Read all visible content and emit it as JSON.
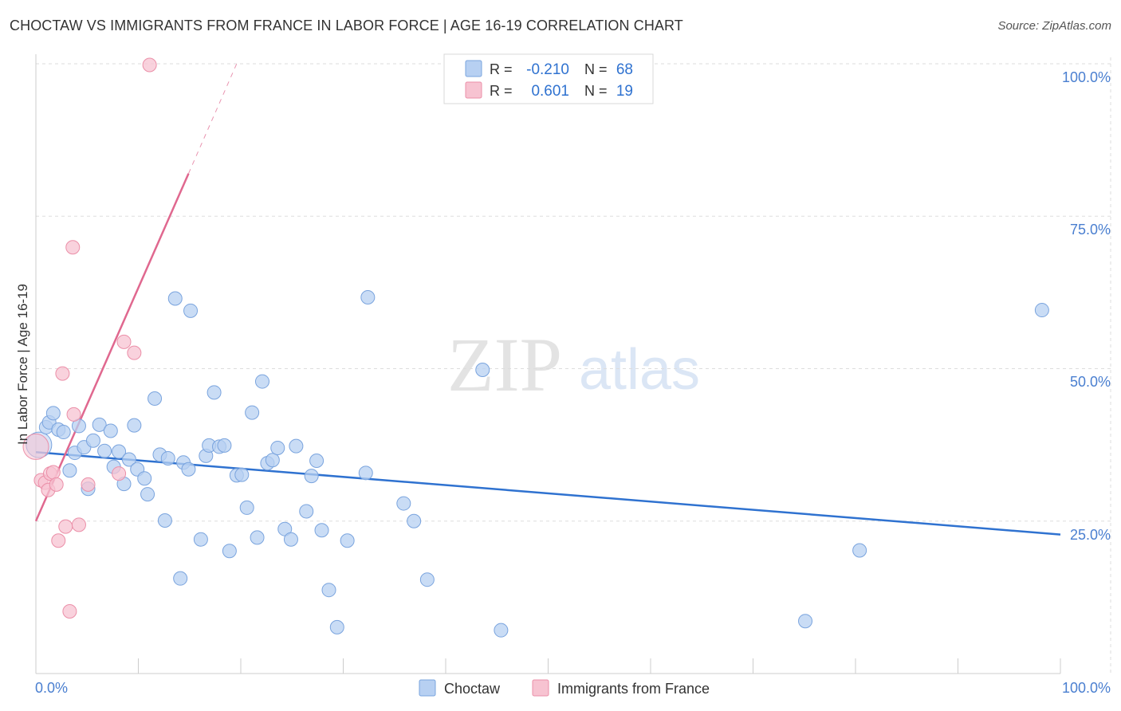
{
  "title": "CHOCTAW VS IMMIGRANTS FROM FRANCE IN LABOR FORCE | AGE 16-19 CORRELATION CHART",
  "source": "Source: ZipAtlas.com",
  "watermark": {
    "zip": "ZIP",
    "atlas": "atlas"
  },
  "colors": {
    "choctaw_fill": "#b7d0f2",
    "choctaw_stroke": "#7aa4de",
    "choctaw_line": "#2f72d0",
    "france_fill": "#f7c3d1",
    "france_stroke": "#eb8fa8",
    "france_line": "#e0688f",
    "axis_label": "#4a7fd0",
    "grid": "#dddddd"
  },
  "legend_top": {
    "rows": [
      {
        "r_label": "R =",
        "r_value": "-0.210",
        "n_label": "N =",
        "n_value": "68"
      },
      {
        "r_label": "R =",
        "r_value": "0.601",
        "n_label": "N =",
        "n_value": "19"
      }
    ]
  },
  "chart_data": {
    "type": "scatter",
    "title": "CHOCTAW VS IMMIGRANTS FROM FRANCE IN LABOR FORCE | AGE 16-19 CORRELATION CHART",
    "xlabel": "",
    "ylabel": "In Labor Force | Age 16-19",
    "xlim": [
      0,
      100
    ],
    "ylim": [
      0,
      100
    ],
    "x_tick_labels": [
      "0.0%",
      "100.0%"
    ],
    "y_ticks": [
      25,
      50,
      75,
      100
    ],
    "y_tick_labels": [
      "25.0%",
      "50.0%",
      "75.0%",
      "100.0%"
    ],
    "grid": true,
    "legend": [
      "Choctaw",
      "Immigrants from France"
    ],
    "series": [
      {
        "name": "Choctaw",
        "r": -0.21,
        "n": 68,
        "trend": {
          "x0": 0,
          "y0": 36.3,
          "x1": 100,
          "y1": 22.8
        },
        "points": [
          [
            0.3,
            37.5
          ],
          [
            1.0,
            40.4
          ],
          [
            1.3,
            41.2
          ],
          [
            1.7,
            42.7
          ],
          [
            2.2,
            40.0
          ],
          [
            2.7,
            39.6
          ],
          [
            3.3,
            33.3
          ],
          [
            3.8,
            36.2
          ],
          [
            4.2,
            40.6
          ],
          [
            4.7,
            37.1
          ],
          [
            5.1,
            30.3
          ],
          [
            5.6,
            38.2
          ],
          [
            6.2,
            40.8
          ],
          [
            6.7,
            36.5
          ],
          [
            7.3,
            39.8
          ],
          [
            7.6,
            33.9
          ],
          [
            8.1,
            36.4
          ],
          [
            8.6,
            31.1
          ],
          [
            9.1,
            35.1
          ],
          [
            9.6,
            40.7
          ],
          [
            9.9,
            33.5
          ],
          [
            10.6,
            32.0
          ],
          [
            10.9,
            29.4
          ],
          [
            11.6,
            45.1
          ],
          [
            12.1,
            35.9
          ],
          [
            12.6,
            25.1
          ],
          [
            12.9,
            35.3
          ],
          [
            13.6,
            61.5
          ],
          [
            14.1,
            15.6
          ],
          [
            14.4,
            34.6
          ],
          [
            14.9,
            33.5
          ],
          [
            15.1,
            59.5
          ],
          [
            16.1,
            22.0
          ],
          [
            16.6,
            35.7
          ],
          [
            16.9,
            37.4
          ],
          [
            17.4,
            46.1
          ],
          [
            17.9,
            37.2
          ],
          [
            18.4,
            37.4
          ],
          [
            18.9,
            20.1
          ],
          [
            19.6,
            32.5
          ],
          [
            20.1,
            32.6
          ],
          [
            20.6,
            27.2
          ],
          [
            21.1,
            42.8
          ],
          [
            21.6,
            22.3
          ],
          [
            22.1,
            47.9
          ],
          [
            22.6,
            34.5
          ],
          [
            23.1,
            35.0
          ],
          [
            23.6,
            37.0
          ],
          [
            24.3,
            23.7
          ],
          [
            24.9,
            22.0
          ],
          [
            25.4,
            37.3
          ],
          [
            26.4,
            26.6
          ],
          [
            26.9,
            32.4
          ],
          [
            27.4,
            34.9
          ],
          [
            27.9,
            23.5
          ],
          [
            28.6,
            13.7
          ],
          [
            29.4,
            7.6
          ],
          [
            30.4,
            21.8
          ],
          [
            32.2,
            32.9
          ],
          [
            32.4,
            61.7
          ],
          [
            35.9,
            27.9
          ],
          [
            36.9,
            25.0
          ],
          [
            38.2,
            15.4
          ],
          [
            43.6,
            49.8
          ],
          [
            45.4,
            7.1
          ],
          [
            75.1,
            8.6
          ],
          [
            80.4,
            20.2
          ],
          [
            98.2,
            59.6
          ]
        ]
      },
      {
        "name": "Immigrants from France",
        "r": 0.601,
        "n": 19,
        "trend": {
          "x0": 0,
          "y0": 25.0,
          "x1": 14.9,
          "y1": 82.0
        },
        "trend_dashed": {
          "x0": 14.9,
          "y0": 82.0,
          "x1": 19.6,
          "y1": 100.0
        },
        "points": [
          [
            0.0,
            37.2
          ],
          [
            0.5,
            31.7
          ],
          [
            0.9,
            31.3
          ],
          [
            1.2,
            30.1
          ],
          [
            1.4,
            32.8
          ],
          [
            1.7,
            33.0
          ],
          [
            2.0,
            31.0
          ],
          [
            2.2,
            21.8
          ],
          [
            2.6,
            49.2
          ],
          [
            2.9,
            24.1
          ],
          [
            3.3,
            10.2
          ],
          [
            3.6,
            69.9
          ],
          [
            3.7,
            42.5
          ],
          [
            4.2,
            24.4
          ],
          [
            5.1,
            31.0
          ],
          [
            8.1,
            32.8
          ],
          [
            8.6,
            54.4
          ],
          [
            9.6,
            52.6
          ],
          [
            11.1,
            99.8
          ]
        ]
      }
    ]
  }
}
